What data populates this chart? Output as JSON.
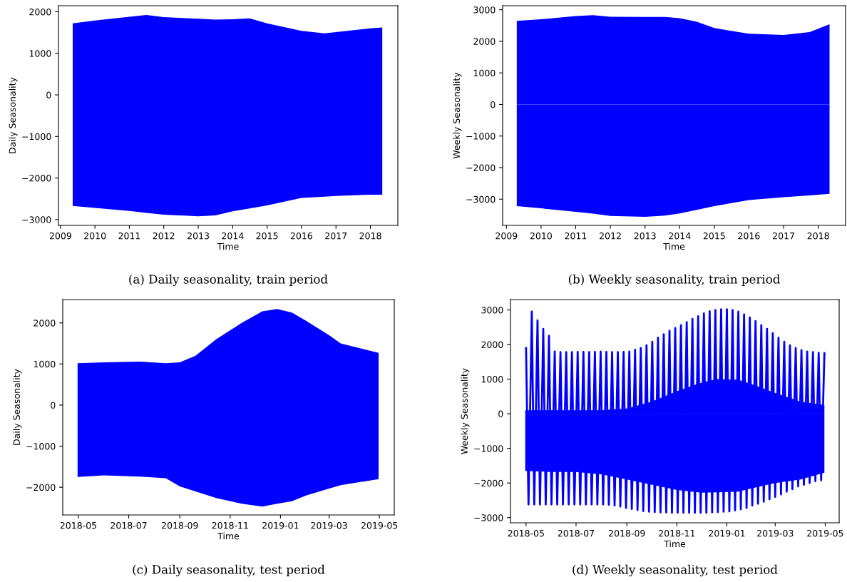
{
  "chart_data": [
    {
      "type": "area",
      "xlabel": "Time",
      "ylabel": "Daily Seasonality",
      "annotations": [
        "(a) Daily seasonality, train period"
      ],
      "xlim": [
        "2008-12-10",
        "2018-10-19"
      ],
      "ylim": [
        -3139,
        2145
      ],
      "xticks": [
        "2009",
        "2010",
        "2011",
        "2012",
        "2013",
        "2014",
        "2015",
        "2016",
        "2017",
        "2018"
      ],
      "yticks": [
        -3000,
        -2000,
        -1000,
        0,
        1000,
        2000
      ],
      "grid": false,
      "series": [
        {
          "color": "#0000ff",
          "x": [
            "2009-05-10",
            "2010-01",
            "2011-01",
            "2011-07",
            "2012-01",
            "2013-01",
            "2013-07",
            "2014-01",
            "2014-07",
            "2015-01",
            "2016-01",
            "2016-09",
            "2017-01",
            "2018-01",
            "2018-05-07"
          ],
          "values": [
            1720,
            1790,
            1880,
            1920,
            1870,
            1830,
            1810,
            1820,
            1840,
            1720,
            1540,
            1480,
            1510,
            1600,
            1620
          ]
        },
        {
          "color": "#0000ff",
          "x": [
            "2009-05-10",
            "2010-01",
            "2011-01",
            "2011-07",
            "2012-01",
            "2013-01",
            "2013-07",
            "2014-01",
            "2014-07",
            "2015-01",
            "2016-01",
            "2016-09",
            "2017-01",
            "2018-01",
            "2018-05-07"
          ],
          "values": [
            -2670,
            -2720,
            -2790,
            -2840,
            -2880,
            -2920,
            -2900,
            -2800,
            -2730,
            -2660,
            -2480,
            -2450,
            -2430,
            -2400,
            -2400
          ]
        }
      ]
    },
    {
      "type": "area",
      "xlabel": "Time",
      "ylabel": "Weekly Seasonality",
      "annotations": [
        "(b) Weekly seasonality, train period"
      ],
      "xlim": [
        "2008-11-22",
        "2018-10-16"
      ],
      "ylim": [
        -3830,
        3128
      ],
      "xticks": [
        "2009",
        "2010",
        "2011",
        "2012",
        "2013",
        "2014",
        "2015",
        "2016",
        "2017",
        "2018"
      ],
      "yticks": [
        -3000,
        -2000,
        -1000,
        0,
        1000,
        2000,
        3000
      ],
      "grid": false,
      "series": [
        {
          "color": "#0000ff",
          "x": [
            "2009-04-20",
            "2010-01",
            "2011-01",
            "2011-07",
            "2012-01",
            "2013-01",
            "2013-08",
            "2014-01",
            "2014-07",
            "2015-01",
            "2016-01",
            "2017-01",
            "2017-10",
            "2018-04-30"
          ],
          "values": [
            2650,
            2700,
            2800,
            2830,
            2780,
            2770,
            2770,
            2730,
            2620,
            2420,
            2240,
            2200,
            2290,
            2540
          ]
        },
        {
          "color": "#0000ff",
          "x": [
            "2009-04-20",
            "2010-01",
            "2011-01",
            "2011-07",
            "2012-01",
            "2013-01",
            "2013-08",
            "2014-01",
            "2014-07",
            "2015-01",
            "2016-01",
            "2017-01",
            "2017-10",
            "2018-04-30"
          ],
          "values": [
            -3220,
            -3290,
            -3400,
            -3460,
            -3530,
            -3560,
            -3520,
            -3450,
            -3340,
            -3220,
            -3030,
            -2940,
            -2880,
            -2830
          ]
        }
      ]
    },
    {
      "type": "area",
      "xlabel": "Time",
      "ylabel": "Daily Seasonality",
      "annotations": [
        "(c) Daily seasonality, test period"
      ],
      "xlim": [
        "2018-04-12",
        "2019-05-19"
      ],
      "ylim": [
        -2674,
        2568
      ],
      "xticks": [
        "2018-05",
        "2018-07",
        "2018-09",
        "2018-11",
        "2019-01",
        "2019-03",
        "2019-05"
      ],
      "yticks": [
        -2000,
        -1000,
        0,
        1000,
        2000
      ],
      "grid": false,
      "series": [
        {
          "color": "#0000ff",
          "x": [
            "2018-04-30",
            "2018-06-01",
            "2018-07-15",
            "2018-08-15",
            "2018-09-01",
            "2018-09-20",
            "2018-10-15",
            "2018-11-15",
            "2018-12-10",
            "2018-12-28",
            "2019-01-15",
            "2019-02-01",
            "2019-03-01",
            "2019-03-15",
            "2019-04-30"
          ],
          "values": [
            1020,
            1040,
            1060,
            1020,
            1040,
            1200,
            1600,
            2000,
            2280,
            2340,
            2250,
            2050,
            1700,
            1500,
            1270
          ]
        },
        {
          "color": "#0000ff",
          "x": [
            "2018-04-30",
            "2018-06-01",
            "2018-07-15",
            "2018-08-15",
            "2018-09-01",
            "2018-09-20",
            "2018-10-15",
            "2018-11-15",
            "2018-12-10",
            "2018-12-28",
            "2019-01-15",
            "2019-02-01",
            "2019-03-01",
            "2019-03-15",
            "2019-04-30"
          ],
          "values": [
            -1750,
            -1710,
            -1740,
            -1780,
            -1980,
            -2100,
            -2260,
            -2400,
            -2470,
            -2400,
            -2340,
            -2200,
            -2030,
            -1950,
            -1800
          ]
        }
      ]
    },
    {
      "type": "line",
      "xlabel": "Time",
      "ylabel": "Weekly Seasonality",
      "annotations": [
        "(d) Weekly seasonality, test period"
      ],
      "xlim": [
        "2018-04-12",
        "2019-05-18"
      ],
      "ylim": [
        -3150,
        3300
      ],
      "xticks": [
        "2018-05",
        "2018-07",
        "2018-09",
        "2018-11",
        "2019-01",
        "2019-03",
        "2019-05"
      ],
      "yticks": [
        -3000,
        -2000,
        -1000,
        0,
        1000,
        2000,
        3000
      ],
      "grid": false,
      "series": [
        {
          "type": "area",
          "color": "#0000ff",
          "x": [
            "2018-04-30",
            "2018-06-01",
            "2018-07-01",
            "2018-08-01",
            "2018-09-01",
            "2018-10-01",
            "2018-11-01",
            "2018-12-01",
            "2018-12-20",
            "2019-01-15",
            "2019-02-01",
            "2019-03-01",
            "2019-04-01",
            "2019-04-30"
          ],
          "values": [
            100,
            100,
            100,
            100,
            150,
            350,
            650,
            900,
            1000,
            980,
            850,
            600,
            350,
            250
          ]
        },
        {
          "type": "area",
          "color": "#0000ff",
          "x": [
            "2018-04-30",
            "2018-06-01",
            "2018-07-01",
            "2018-08-01",
            "2018-09-01",
            "2018-10-01",
            "2018-11-01",
            "2018-12-01",
            "2018-12-20",
            "2019-01-15",
            "2019-02-01",
            "2019-03-01",
            "2019-04-01",
            "2019-04-30"
          ],
          "values": [
            -1650,
            -1680,
            -1680,
            -1750,
            -1900,
            -2050,
            -2200,
            -2280,
            -2270,
            -2250,
            -2150,
            -2000,
            -1900,
            -1700
          ]
        },
        {
          "color": "#0000ff",
          "x": [
            "2018-05-01",
            "2018-05-04",
            "2018-05-08",
            "2018-05-11",
            "2018-05-15",
            "2018-05-18",
            "2018-05-22",
            "2018-05-25",
            "2018-05-29",
            "2018-06-01",
            "2018-06-05",
            "2018-06-08",
            "2018-06-12",
            "2018-06-15",
            "2018-06-19",
            "2018-06-22",
            "2018-06-26",
            "2018-06-29",
            "2018-07-03",
            "2018-07-06",
            "2018-07-10",
            "2018-07-13",
            "2018-07-17",
            "2018-07-20",
            "2018-07-24",
            "2018-07-27",
            "2018-07-31",
            "2018-08-03",
            "2018-08-07",
            "2018-08-10",
            "2018-08-14",
            "2018-08-17",
            "2018-08-21",
            "2018-08-24",
            "2018-08-28",
            "2018-08-31",
            "2018-09-04",
            "2018-09-07",
            "2018-09-11",
            "2018-09-14",
            "2018-09-18",
            "2018-09-21",
            "2018-09-25",
            "2018-09-28",
            "2018-10-02",
            "2018-10-05",
            "2018-10-09",
            "2018-10-12",
            "2018-10-16",
            "2018-10-19",
            "2018-10-23",
            "2018-10-26",
            "2018-10-30",
            "2018-11-02",
            "2018-11-06",
            "2018-11-09",
            "2018-11-13",
            "2018-11-16",
            "2018-11-20",
            "2018-11-23",
            "2018-11-27",
            "2018-11-30",
            "2018-12-04",
            "2018-12-07",
            "2018-12-11",
            "2018-12-14",
            "2018-12-18",
            "2018-12-21",
            "2018-12-25",
            "2018-12-28",
            "2019-01-01",
            "2019-01-04",
            "2019-01-08",
            "2019-01-11",
            "2019-01-15",
            "2019-01-18",
            "2019-01-22",
            "2019-01-25",
            "2019-01-29",
            "2019-02-01",
            "2019-02-05",
            "2019-02-08",
            "2019-02-12",
            "2019-02-15",
            "2019-02-19",
            "2019-02-22",
            "2019-02-26",
            "2019-03-01",
            "2019-03-05",
            "2019-03-08",
            "2019-03-12",
            "2019-03-15",
            "2019-03-19",
            "2019-03-22",
            "2019-03-26",
            "2019-03-29",
            "2019-04-02",
            "2019-04-05",
            "2019-04-09",
            "2019-04-12",
            "2019-04-16",
            "2019-04-19",
            "2019-04-23",
            "2019-04-26",
            "2019-04-30"
          ],
          "values": [
            1900,
            -2620,
            2950,
            -2620,
            2700,
            -2620,
            2450,
            -2620,
            2250,
            -2620,
            1800,
            -2620,
            1780,
            -2620,
            1780,
            -2620,
            1780,
            -2620,
            1790,
            -2620,
            1790,
            -2620,
            1780,
            -2620,
            1790,
            -2620,
            1800,
            -2620,
            1790,
            -2630,
            1780,
            -2650,
            1780,
            -2680,
            1790,
            -2720,
            1800,
            -2750,
            1850,
            -2780,
            1900,
            -2810,
            1980,
            -2830,
            2080,
            -2840,
            2200,
            -2850,
            2300,
            -2850,
            2400,
            -2860,
            2480,
            -2860,
            2560,
            -2860,
            2650,
            -2860,
            2740,
            -2860,
            2820,
            -2860,
            2900,
            -2860,
            2960,
            -2850,
            3000,
            -2840,
            3020,
            -2830,
            3020,
            -2820,
            3000,
            -2790,
            2950,
            -2760,
            2870,
            -2720,
            2780,
            -2650,
            2680,
            -2600,
            2560,
            -2540,
            2450,
            -2470,
            2330,
            -2400,
            2200,
            -2330,
            2080,
            -2250,
            1980,
            -2180,
            1900,
            -2100,
            1840,
            -2050,
            1800,
            -2000,
            1780,
            -1950,
            1760,
            -1920,
            1750
          ]
        }
      ]
    }
  ]
}
